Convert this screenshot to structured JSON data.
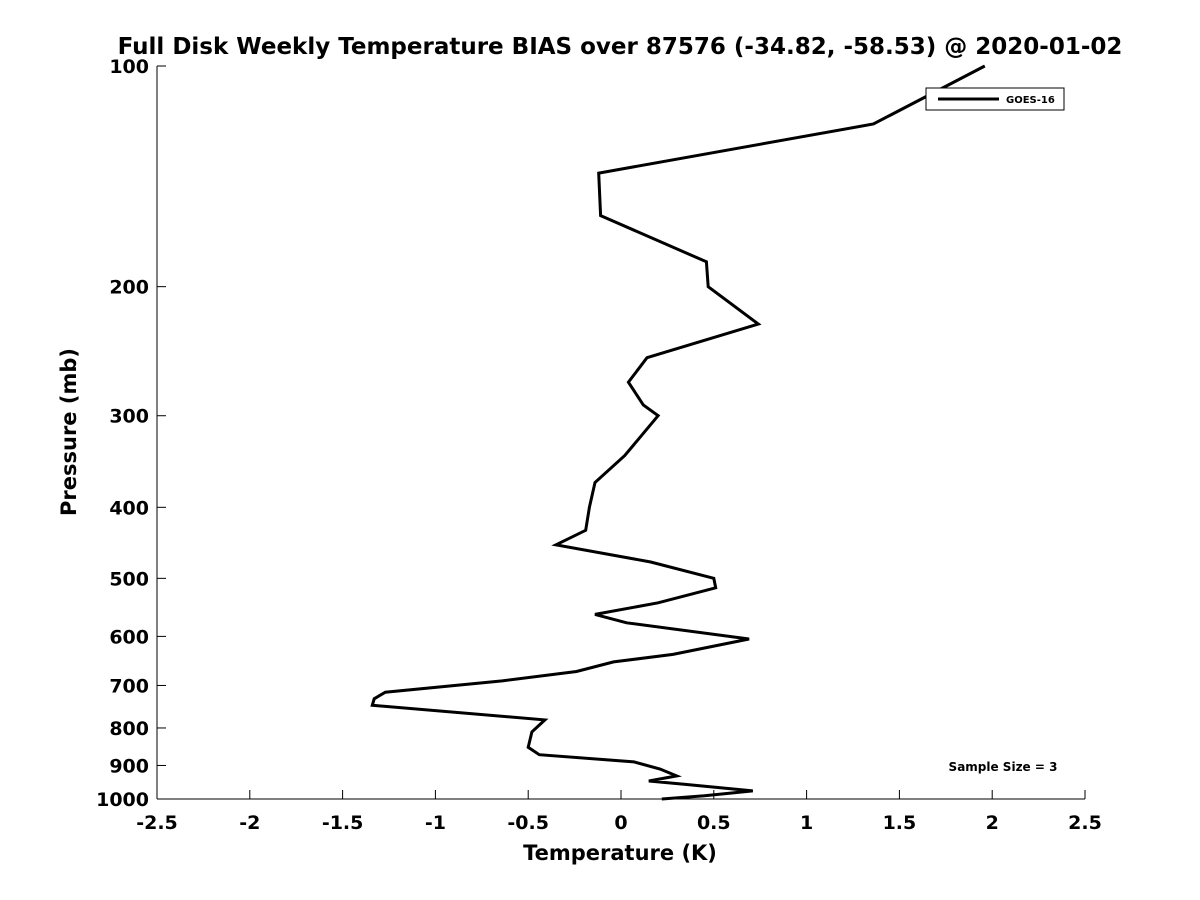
{
  "chart_data": {
    "type": "line",
    "title": "Full Disk Weekly Temperature BIAS over 87576 (-34.82, -58.53) @ 2020-01-02",
    "xlabel": "Temperature (K)",
    "ylabel": "Pressure (mb)",
    "xlim": [
      -2.5,
      2.5
    ],
    "ylim": [
      100,
      1000
    ],
    "yscale": "log",
    "yreversed": true,
    "grid": false,
    "legend_position": "top-right",
    "x_ticks": [
      -2.5,
      -2,
      -1.5,
      -1,
      -0.5,
      0,
      0.5,
      1,
      1.5,
      2,
      2.5
    ],
    "x_tick_labels": [
      "-2.5",
      "-2",
      "-1.5",
      "-1",
      "-0.5",
      "0",
      "0.5",
      "1",
      "1.5",
      "2",
      "2.5"
    ],
    "y_ticks": [
      100,
      200,
      300,
      400,
      500,
      600,
      700,
      800,
      900,
      1000
    ],
    "y_tick_labels": [
      "100",
      "200",
      "300",
      "400",
      "500",
      "600",
      "700",
      "800",
      "900",
      "1000"
    ],
    "annotation": "Sample Size = 3",
    "series": [
      {
        "name": "GOES-16",
        "color": "#000000",
        "points": [
          [
            1.96,
            100
          ],
          [
            1.36,
            120
          ],
          [
            -0.12,
            140
          ],
          [
            -0.11,
            160
          ],
          [
            0.46,
            185
          ],
          [
            0.47,
            200
          ],
          [
            0.74,
            225
          ],
          [
            0.14,
            250
          ],
          [
            0.04,
            270
          ],
          [
            0.12,
            290
          ],
          [
            0.2,
            300
          ],
          [
            0.02,
            340
          ],
          [
            -0.14,
            370
          ],
          [
            -0.17,
            400
          ],
          [
            -0.19,
            430
          ],
          [
            -0.35,
            450
          ],
          [
            0.16,
            475
          ],
          [
            0.5,
            500
          ],
          [
            0.51,
            515
          ],
          [
            0.2,
            540
          ],
          [
            -0.14,
            560
          ],
          [
            0.03,
            575
          ],
          [
            0.69,
            605
          ],
          [
            0.28,
            635
          ],
          [
            -0.04,
            650
          ],
          [
            -0.24,
            670
          ],
          [
            -0.64,
            690
          ],
          [
            -1.27,
            715
          ],
          [
            -1.33,
            730
          ],
          [
            -1.34,
            745
          ],
          [
            -0.41,
            780
          ],
          [
            -0.48,
            810
          ],
          [
            -0.5,
            850
          ],
          [
            -0.44,
            870
          ],
          [
            0.07,
            890
          ],
          [
            0.21,
            910
          ],
          [
            0.3,
            930
          ],
          [
            0.15,
            945
          ],
          [
            0.34,
            955
          ],
          [
            0.71,
            975
          ],
          [
            0.45,
            990
          ],
          [
            0.22,
            1000
          ]
        ]
      }
    ]
  }
}
